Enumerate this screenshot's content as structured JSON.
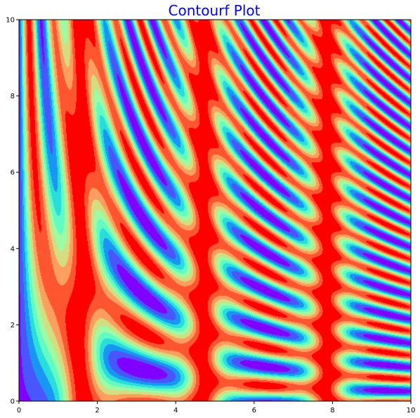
{
  "chart_data": {
    "type": "heatmap",
    "subtype": "filled-contour",
    "title": "Contourf Plot",
    "xlabel": "",
    "ylabel": "",
    "xlim": [
      0,
      10
    ],
    "ylim": [
      0,
      10
    ],
    "x_ticks": [
      "0",
      "2",
      "4",
      "6",
      "8",
      "10"
    ],
    "y_ticks": [
      "0",
      "2",
      "4",
      "6",
      "8",
      "10"
    ],
    "grid": false,
    "legend": "none",
    "colormap": "rainbow",
    "function": "sin(x) ** 10 + cos(10 + y * x) * cos(x)",
    "level_count": 10,
    "level_colors": [
      "#8000ff",
      "#4856fb",
      "#1996f3",
      "#2adddd",
      "#62fbc4",
      "#9cfba4",
      "#d4dd80",
      "#ff9e5f",
      "#ff5630",
      "#ff0000"
    ],
    "title_color": "#0000ff"
  }
}
